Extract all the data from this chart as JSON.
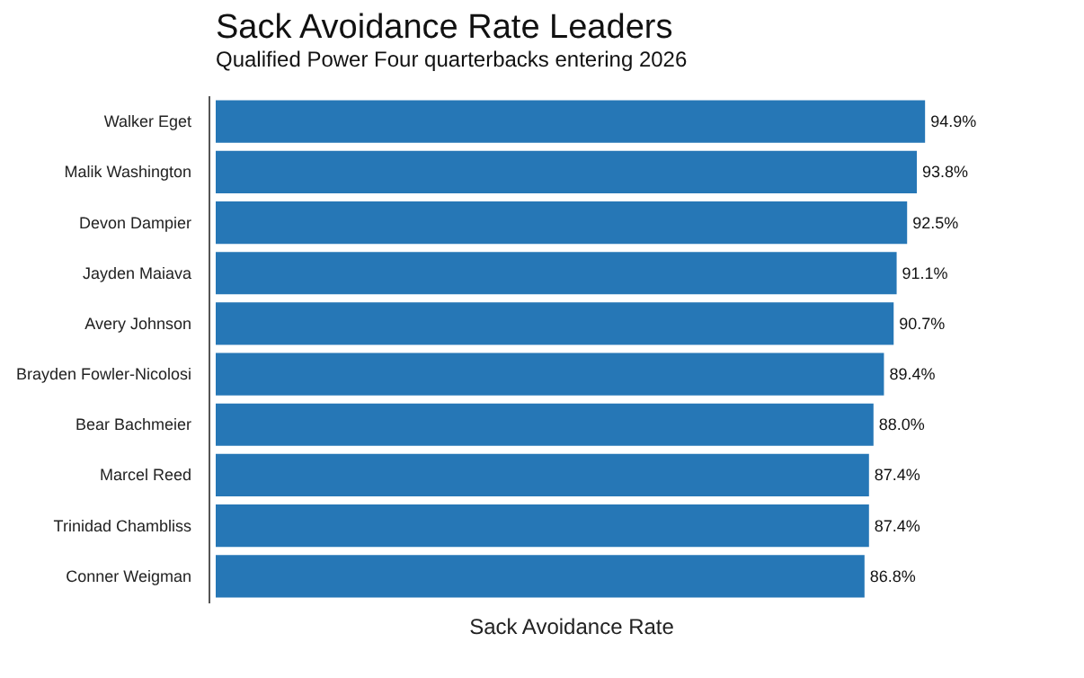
{
  "chart_data": {
    "type": "bar",
    "orientation": "horizontal",
    "title": "Sack Avoidance Rate Leaders",
    "subtitle": "Qualified Power Four quarterbacks entering 2026",
    "xlabel": "Sack Avoidance Rate",
    "categories": [
      "Walker Eget",
      "Malik Washington",
      "Devon Dampier",
      "Jayden Maiava",
      "Avery Johnson",
      "Brayden Fowler-Nicolosi",
      "Bear Bachmeier",
      "Marcel Reed",
      "Trinidad Chambliss",
      "Conner Weigman"
    ],
    "values": [
      94.9,
      93.8,
      92.5,
      91.1,
      90.7,
      89.4,
      88.0,
      87.4,
      87.4,
      86.8
    ],
    "value_labels": [
      "94.9%",
      "93.8%",
      "92.5%",
      "91.1%",
      "90.7%",
      "89.4%",
      "88.0%",
      "87.4%",
      "87.4%",
      "86.8%"
    ],
    "color": "#2677b6",
    "xlim": [
      0,
      95
    ],
    "tick_labels": "y"
  }
}
